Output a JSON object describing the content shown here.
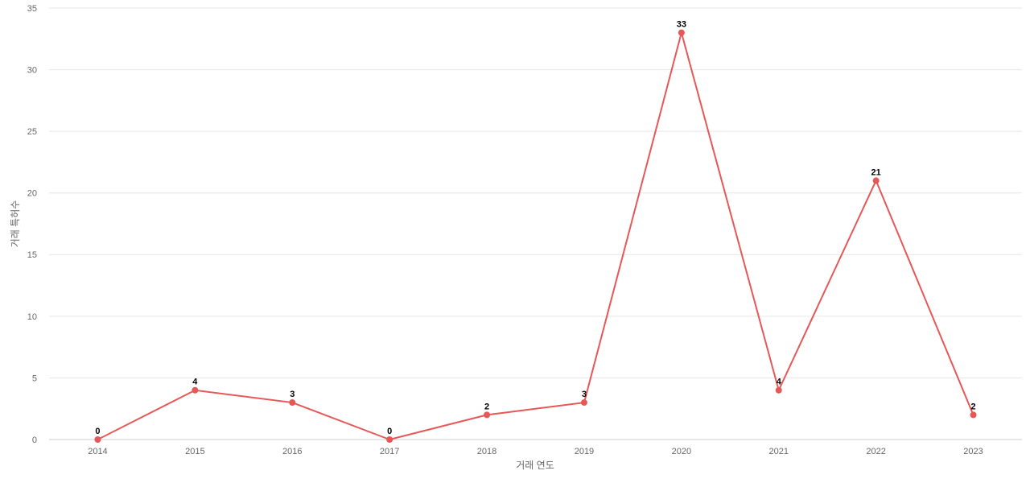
{
  "chart_data": {
    "type": "line",
    "x_label": "거래 연도",
    "y_label": "거래 특허수",
    "categories": [
      "2014",
      "2015",
      "2016",
      "2017",
      "2018",
      "2019",
      "2020",
      "2021",
      "2022",
      "2023"
    ],
    "values": [
      0,
      4,
      3,
      0,
      2,
      3,
      33,
      4,
      21,
      2
    ],
    "color": "#e85757",
    "ylim": [
      0,
      35
    ],
    "yticks": [
      0,
      5,
      10,
      15,
      20,
      25,
      30,
      35
    ],
    "grid": true
  }
}
